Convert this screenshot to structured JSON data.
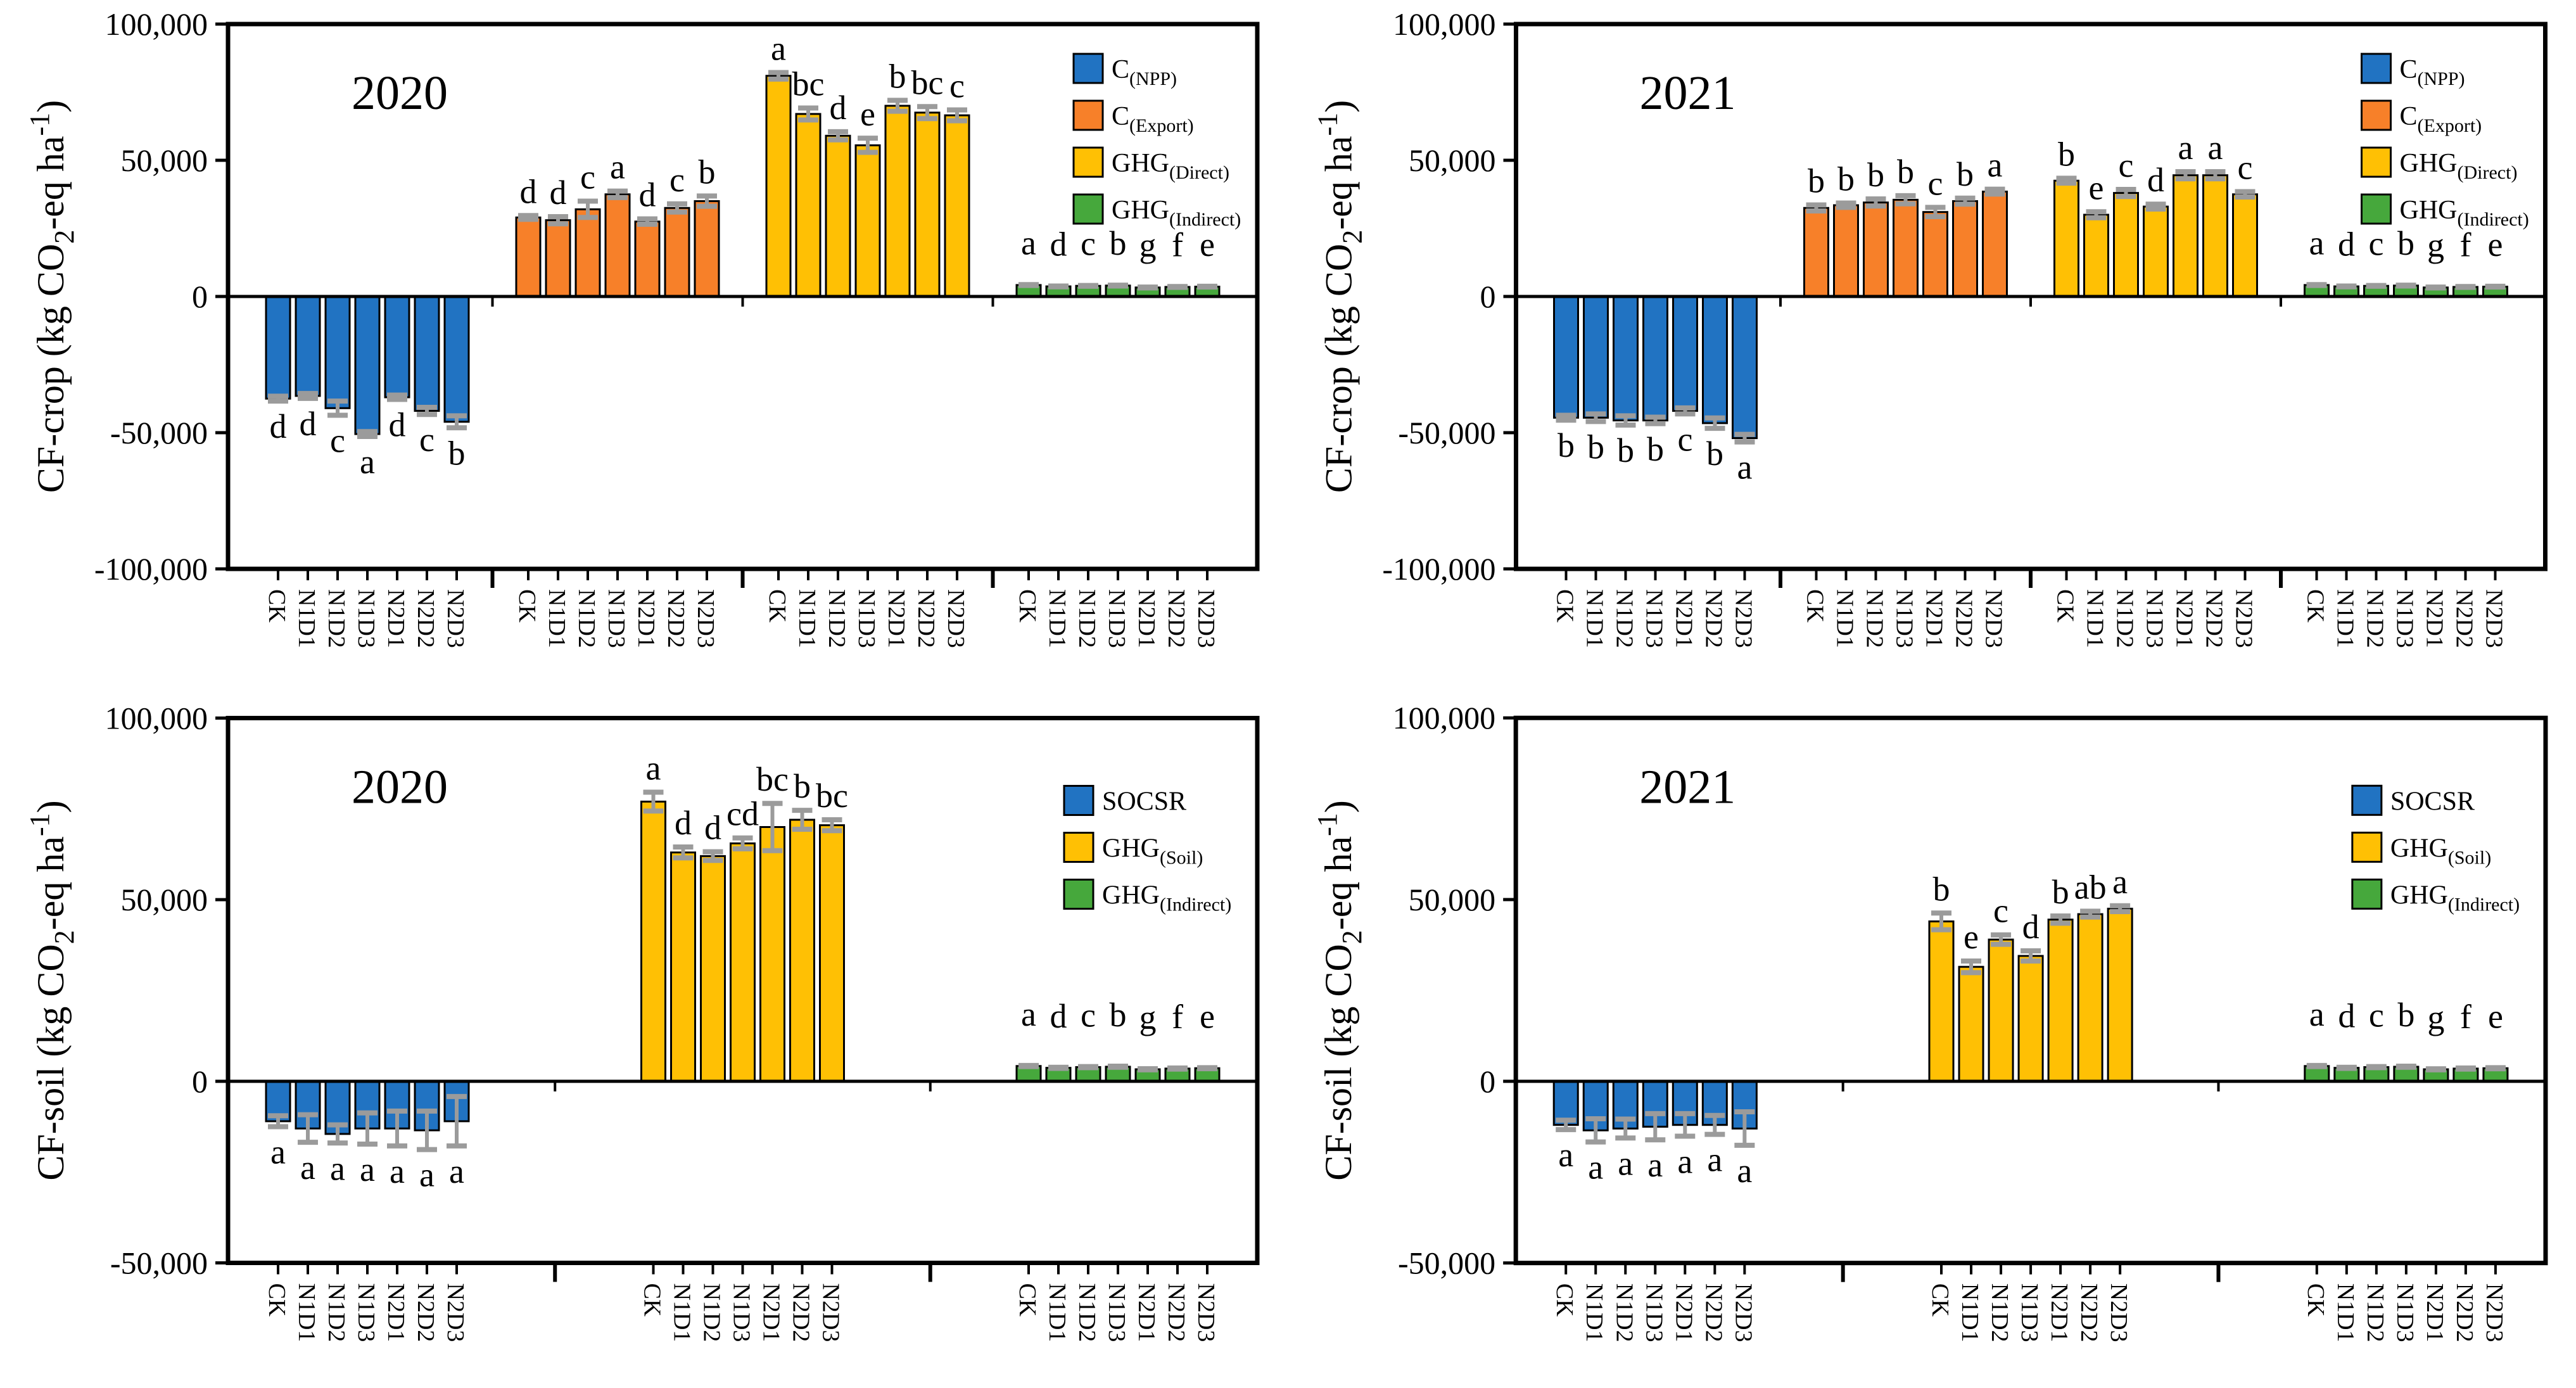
{
  "figure": {
    "description": "Four-panel bar chart figure of carbon footprint components by treatment",
    "years": [
      "2020",
      "2021"
    ],
    "rows": [
      "CF-crop",
      "CF-soil"
    ]
  },
  "colors": {
    "blue": "#2173c2",
    "orange": "#f78029",
    "yellow": "#ffc004",
    "green": "#46a83c",
    "error_bar": "#9b9b9b",
    "axis": "#000000"
  },
  "chart_data": [
    {
      "type": "bar",
      "panel": "top-left",
      "year_label": "2020",
      "ylabel_text": "CF-crop (kg CO2-eq ha-1)",
      "ylabel_segments": [
        {
          "t": "CF-crop (kg CO"
        },
        {
          "t": "2",
          "s": "sub"
        },
        {
          "t": "-eq ha"
        },
        {
          "t": "-1",
          "s": "sup"
        },
        {
          "t": ")"
        }
      ],
      "ylim": [
        -100000,
        100000
      ],
      "yticks": [
        {
          "v": 100000,
          "label": "100,000"
        },
        {
          "v": 50000,
          "label": "50,000"
        },
        {
          "v": 0,
          "label": "0"
        },
        {
          "v": -50000,
          "label": "-50,000"
        },
        {
          "v": -100000,
          "label": "-100,000"
        }
      ],
      "categories": [
        "CK",
        "N1D1",
        "N1D2",
        "N1D3",
        "N2D1",
        "N2D2",
        "N2D3"
      ],
      "grid": false,
      "legend_pos": [
        1695,
        85
      ],
      "series": [
        {
          "name": "C(NPP)",
          "label_segments": [
            {
              "t": "C"
            },
            {
              "t": "(NPP)",
              "s": "sub"
            }
          ],
          "color": "#2173c2",
          "letter_raise": 0,
          "values": [
            -37500,
            -36500,
            -41000,
            -50500,
            -37000,
            -42000,
            -46000
          ],
          "errors": [
            900,
            900,
            2600,
            900,
            800,
            1300,
            2200
          ],
          "letters": [
            "d",
            "d",
            "c",
            "a",
            "d",
            "c",
            "b"
          ]
        },
        {
          "name": "C(Export)",
          "label_segments": [
            {
              "t": "C"
            },
            {
              "t": "(Export)",
              "s": "sub"
            }
          ],
          "color": "#f78029",
          "letter_raise": 0,
          "values": [
            29000,
            28000,
            32000,
            37500,
            27500,
            32500,
            35000
          ],
          "errors": [
            700,
            1300,
            3000,
            1200,
            1000,
            1500,
            1900
          ],
          "letters": [
            "d",
            "d",
            "c",
            "a",
            "d",
            "c",
            "b"
          ]
        },
        {
          "name": "GHG(Direct)",
          "label_segments": [
            {
              "t": "GHG"
            },
            {
              "t": "(Direct)",
              "s": "sub"
            }
          ],
          "color": "#ffc004",
          "letter_raise": 0,
          "values": [
            81000,
            67000,
            59000,
            55500,
            70000,
            67500,
            66500
          ],
          "errors": [
            1200,
            2200,
            1500,
            2600,
            2000,
            2200,
            2000
          ],
          "letters": [
            "a",
            "bc",
            "d",
            "e",
            "b",
            "bc",
            "c"
          ]
        },
        {
          "name": "GHG(Indirect)",
          "label_segments": [
            {
              "t": "GHG"
            },
            {
              "t": "(Indirect)",
              "s": "sub"
            }
          ],
          "color": "#46a83c",
          "letter_raise": 6500,
          "values": [
            4200,
            3700,
            3900,
            4000,
            3300,
            3500,
            3600
          ],
          "errors": [
            150,
            150,
            150,
            150,
            150,
            150,
            150
          ],
          "letters": [
            "a",
            "d",
            "c",
            "b",
            "g",
            "f",
            "e"
          ]
        }
      ]
    },
    {
      "type": "bar",
      "panel": "top-right",
      "year_label": "2021",
      "ylabel_text": "CF-crop (kg CO2-eq ha-1)",
      "ylabel_segments": [
        {
          "t": "CF-crop (kg CO"
        },
        {
          "t": "2",
          "s": "sub"
        },
        {
          "t": "-eq ha"
        },
        {
          "t": "-1",
          "s": "sup"
        },
        {
          "t": ")"
        }
      ],
      "ylim": [
        -100000,
        100000
      ],
      "yticks": [
        {
          "v": 100000,
          "label": "100,000"
        },
        {
          "v": 50000,
          "label": "50,000"
        },
        {
          "v": 0,
          "label": "0"
        },
        {
          "v": -50000,
          "label": "-50,000"
        },
        {
          "v": -100000,
          "label": "-100,000"
        }
      ],
      "categories": [
        "CK",
        "N1D1",
        "N1D2",
        "N1D3",
        "N2D1",
        "N2D2",
        "N2D3"
      ],
      "grid": false,
      "legend_pos": [
        1695,
        85
      ],
      "series": [
        {
          "name": "C(NPP)",
          "label_segments": [
            {
              "t": "C"
            },
            {
              "t": "(NPP)",
              "s": "sub"
            }
          ],
          "color": "#2173c2",
          "letter_raise": 0,
          "values": [
            -44500,
            -44500,
            -45500,
            -45500,
            -42000,
            -46500,
            -52000
          ],
          "errors": [
            900,
            1400,
            1700,
            1200,
            1100,
            1900,
            1400
          ],
          "letters": [
            "b",
            "b",
            "b",
            "b",
            "c",
            "b",
            "a"
          ]
        },
        {
          "name": "C(Export)",
          "label_segments": [
            {
              "t": "C"
            },
            {
              "t": "(Export)",
              "s": "sub"
            }
          ],
          "color": "#f78029",
          "letter_raise": 0,
          "values": [
            32500,
            33500,
            34500,
            35500,
            31000,
            35000,
            38500
          ],
          "errors": [
            1100,
            800,
            1300,
            1500,
            1700,
            1100,
            900
          ],
          "letters": [
            "b",
            "b",
            "b",
            "b",
            "c",
            "b",
            "a"
          ]
        },
        {
          "name": "GHG(Direct)",
          "label_segments": [
            {
              "t": "GHG"
            },
            {
              "t": "(Direct)",
              "s": "sub"
            }
          ],
          "color": "#ffc004",
          "letter_raise": 0,
          "values": [
            42500,
            30000,
            38000,
            33000,
            44500,
            44500,
            37500
          ],
          "errors": [
            900,
            1100,
            1300,
            900,
            1300,
            1300,
            1000
          ],
          "letters": [
            "b",
            "e",
            "c",
            "d",
            "a",
            "a",
            "c"
          ]
        },
        {
          "name": "GHG(Indirect)",
          "label_segments": [
            {
              "t": "GHG"
            },
            {
              "t": "(Indirect)",
              "s": "sub"
            }
          ],
          "color": "#46a83c",
          "letter_raise": 6500,
          "values": [
            4200,
            3700,
            3900,
            4000,
            3300,
            3500,
            3600
          ],
          "errors": [
            150,
            150,
            150,
            150,
            150,
            150,
            150
          ],
          "letters": [
            "a",
            "d",
            "c",
            "b",
            "g",
            "f",
            "e"
          ]
        }
      ]
    },
    {
      "type": "bar",
      "panel": "bottom-left",
      "year_label": "2020",
      "ylabel_text": "CF-soil (kg CO2-eq ha-1)",
      "ylabel_segments": [
        {
          "t": "CF-soil (kg CO"
        },
        {
          "t": "2",
          "s": "sub"
        },
        {
          "t": "-eq ha"
        },
        {
          "t": "-1",
          "s": "sup"
        },
        {
          "t": ")"
        }
      ],
      "ylim": [
        -50000,
        100000
      ],
      "yticks": [
        {
          "v": 100000,
          "label": "100,000"
        },
        {
          "v": 50000,
          "label": "50,000"
        },
        {
          "v": 0,
          "label": "0"
        },
        {
          "v": -50000,
          "label": "-50,000"
        }
      ],
      "categories": [
        "CK",
        "N1D1",
        "N1D2",
        "N1D3",
        "N2D1",
        "N2D2",
        "N2D3"
      ],
      "grid": false,
      "legend_pos": [
        1680,
        145
      ],
      "series": [
        {
          "name": "SOCSR",
          "label_segments": [
            {
              "t": "SOCSR"
            }
          ],
          "color": "#2173c2",
          "letter_raise": 0,
          "values": [
            -11000,
            -13000,
            -14500,
            -13000,
            -13000,
            -13500,
            -11000
          ],
          "errors": [
            1500,
            3800,
            2500,
            4300,
            4800,
            5300,
            6800
          ],
          "letters": [
            "a",
            "a",
            "a",
            "a",
            "a",
            "a",
            "a"
          ]
        },
        {
          "name": "GHG(Soil)",
          "label_segments": [
            {
              "t": "GHG"
            },
            {
              "t": "(Soil)",
              "s": "sub"
            }
          ],
          "color": "#ffc004",
          "letter_raise": 0,
          "values": [
            77000,
            63000,
            62000,
            65500,
            70000,
            72000,
            70500
          ],
          "errors": [
            2600,
            1500,
            1200,
            1500,
            6500,
            2600,
            1500
          ],
          "letters": [
            "a",
            "d",
            "d",
            "cd",
            "bc",
            "b",
            "bc"
          ]
        },
        {
          "name": "GHG(Indirect)",
          "label_segments": [
            {
              "t": "GHG"
            },
            {
              "t": "(Indirect)",
              "s": "sub"
            }
          ],
          "color": "#46a83c",
          "letter_raise": 7500,
          "values": [
            4200,
            3700,
            3900,
            4000,
            3300,
            3500,
            3600
          ],
          "errors": [
            150,
            150,
            150,
            150,
            150,
            150,
            150
          ],
          "letters": [
            "a",
            "d",
            "c",
            "b",
            "g",
            "f",
            "e"
          ]
        }
      ]
    },
    {
      "type": "bar",
      "panel": "bottom-right",
      "year_label": "2021",
      "ylabel_text": "CF-soil (kg CO2-eq ha-1)",
      "ylabel_segments": [
        {
          "t": "CF-soil (kg CO"
        },
        {
          "t": "2",
          "s": "sub"
        },
        {
          "t": "-eq ha"
        },
        {
          "t": "-1",
          "s": "sup"
        },
        {
          "t": ")"
        }
      ],
      "ylim": [
        -50000,
        100000
      ],
      "yticks": [
        {
          "v": 100000,
          "label": "100,000"
        },
        {
          "v": 50000,
          "label": "50,000"
        },
        {
          "v": 0,
          "label": "0"
        },
        {
          "v": -50000,
          "label": "-50,000"
        }
      ],
      "categories": [
        "CK",
        "N1D1",
        "N1D2",
        "N1D3",
        "N2D1",
        "N2D2",
        "N2D3"
      ],
      "grid": false,
      "legend_pos": [
        1680,
        145
      ],
      "series": [
        {
          "name": "SOCSR",
          "label_segments": [
            {
              "t": "SOCSR"
            }
          ],
          "color": "#2173c2",
          "letter_raise": 0,
          "values": [
            -12000,
            -13500,
            -13000,
            -12500,
            -12000,
            -12000,
            -13000
          ],
          "errors": [
            1300,
            3200,
            2600,
            3600,
            3100,
            2600,
            4600
          ],
          "letters": [
            "a",
            "a",
            "a",
            "a",
            "a",
            "a",
            "a"
          ]
        },
        {
          "name": "GHG(Soil)",
          "label_segments": [
            {
              "t": "GHG"
            },
            {
              "t": "(Soil)",
              "s": "sub"
            }
          ],
          "color": "#ffc004",
          "letter_raise": 0,
          "values": [
            44000,
            31500,
            39000,
            34500,
            44500,
            46000,
            47500
          ],
          "errors": [
            2300,
            1600,
            1300,
            1400,
            1000,
            800,
            800
          ],
          "letters": [
            "b",
            "e",
            "c",
            "d",
            "b",
            "ab",
            "a"
          ]
        },
        {
          "name": "GHG(Indirect)",
          "label_segments": [
            {
              "t": "GHG"
            },
            {
              "t": "(Indirect)",
              "s": "sub"
            }
          ],
          "color": "#46a83c",
          "letter_raise": 7500,
          "values": [
            4200,
            3700,
            3900,
            4000,
            3300,
            3500,
            3600
          ],
          "errors": [
            150,
            150,
            150,
            150,
            150,
            150,
            150
          ],
          "letters": [
            "a",
            "d",
            "c",
            "b",
            "g",
            "f",
            "e"
          ]
        }
      ]
    }
  ]
}
